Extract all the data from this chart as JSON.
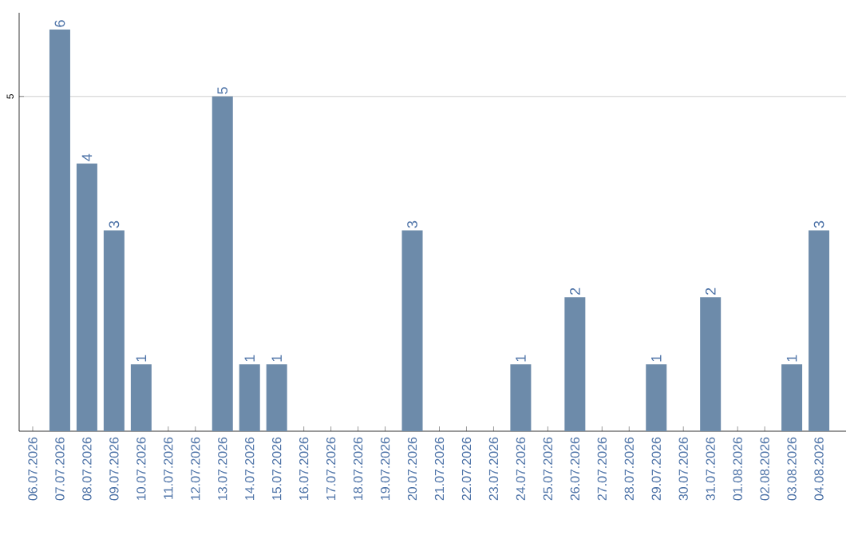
{
  "chart_data": {
    "type": "bar",
    "categories": [
      "06.07.2026",
      "07.07.2026",
      "08.07.2026",
      "09.07.2026",
      "10.07.2026",
      "11.07.2026",
      "12.07.2026",
      "13.07.2026",
      "14.07.2026",
      "15.07.2026",
      "16.07.2026",
      "17.07.2026",
      "18.07.2026",
      "19.07.2026",
      "20.07.2026",
      "21.07.2026",
      "22.07.2026",
      "23.07.2026",
      "24.07.2026",
      "25.07.2026",
      "26.07.2026",
      "27.07.2026",
      "28.07.2026",
      "29.07.2026",
      "30.07.2026",
      "31.07.2026",
      "01.08.2026",
      "02.08.2026",
      "03.08.2026",
      "04.08.2026"
    ],
    "values": [
      0,
      6,
      4,
      3,
      1,
      0,
      0,
      5,
      1,
      1,
      0,
      0,
      0,
      0,
      3,
      0,
      0,
      0,
      1,
      0,
      2,
      0,
      0,
      1,
      0,
      2,
      0,
      0,
      1,
      3
    ],
    "value_labels": [
      null,
      "6",
      "4",
      "3",
      "1",
      null,
      null,
      "5",
      "1",
      "1",
      null,
      null,
      null,
      null,
      "3",
      null,
      null,
      null,
      "1",
      null,
      "2",
      null,
      null,
      "1",
      null,
      "2",
      null,
      null,
      "1",
      "3"
    ],
    "color": "#6d8baa",
    "ylim": [
      0,
      6.25
    ],
    "yticks": [
      5
    ],
    "grid": "y"
  }
}
